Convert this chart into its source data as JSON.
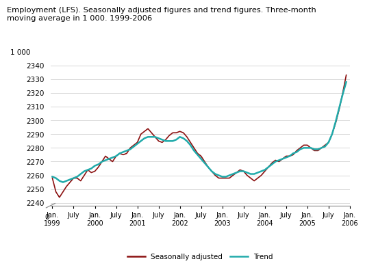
{
  "title": "Employment (LFS). Seasonally adjusted figures and trend figures. Three-month\nmoving average in 1 000. 1999-2006",
  "ylabel": "1 000",
  "background_color": "#ffffff",
  "grid_color": "#d0d0d0",
  "sa_color": "#8B1010",
  "trend_color": "#20AAAA",
  "sa_linewidth": 1.2,
  "trend_linewidth": 1.8,
  "ylim_bottom": 2238,
  "ylim_top": 2344,
  "yticks": [
    2240,
    2250,
    2260,
    2270,
    2280,
    2290,
    2300,
    2310,
    2320,
    2330,
    2340
  ],
  "seasonally_adjusted": [
    2258,
    2248,
    2244,
    2248,
    2252,
    2255,
    2258,
    2258,
    2256,
    2260,
    2264,
    2262,
    2263,
    2266,
    2270,
    2274,
    2272,
    2270,
    2274,
    2276,
    2275,
    2276,
    2280,
    2282,
    2284,
    2290,
    2292,
    2294,
    2291,
    2288,
    2285,
    2284,
    2286,
    2289,
    2291,
    2291,
    2292,
    2291,
    2288,
    2284,
    2280,
    2276,
    2274,
    2270,
    2266,
    2263,
    2260,
    2258,
    2258,
    2258,
    2258,
    2260,
    2262,
    2264,
    2263,
    2260,
    2258,
    2256,
    2258,
    2260,
    2263,
    2266,
    2269,
    2271,
    2270,
    2272,
    2274,
    2274,
    2275,
    2278,
    2280,
    2282,
    2282,
    2280,
    2278,
    2278,
    2280,
    2282,
    2284,
    2290,
    2298,
    2308,
    2320,
    2333
  ],
  "trend": [
    2259,
    2258,
    2256,
    2255,
    2256,
    2257,
    2258,
    2259,
    2261,
    2263,
    2264,
    2265,
    2267,
    2268,
    2270,
    2271,
    2272,
    2273,
    2274,
    2276,
    2277,
    2278,
    2279,
    2281,
    2283,
    2285,
    2287,
    2288,
    2288,
    2288,
    2287,
    2286,
    2285,
    2285,
    2285,
    2286,
    2288,
    2287,
    2285,
    2282,
    2278,
    2275,
    2272,
    2269,
    2266,
    2263,
    2261,
    2260,
    2259,
    2259,
    2260,
    2261,
    2262,
    2263,
    2263,
    2262,
    2261,
    2261,
    2262,
    2263,
    2264,
    2266,
    2268,
    2270,
    2271,
    2272,
    2273,
    2274,
    2276,
    2277,
    2279,
    2280,
    2280,
    2280,
    2279,
    2279,
    2280,
    2281,
    2284,
    2290,
    2299,
    2309,
    2319,
    2328
  ],
  "x_tick_positions": [
    0,
    6,
    12,
    18,
    24,
    30,
    36,
    42,
    48,
    54,
    60,
    66,
    72,
    78,
    84
  ],
  "x_tick_labels": [
    "Jan.\n1999",
    "July",
    "Jan.\n2000",
    "July",
    "Jan.\n2001",
    "July",
    "Jan.\n2002",
    "July",
    "Jan.\n2003",
    "July",
    "Jan.\n2004",
    "July",
    "Jan.\n2005",
    "July",
    "Jan.\n2006"
  ]
}
